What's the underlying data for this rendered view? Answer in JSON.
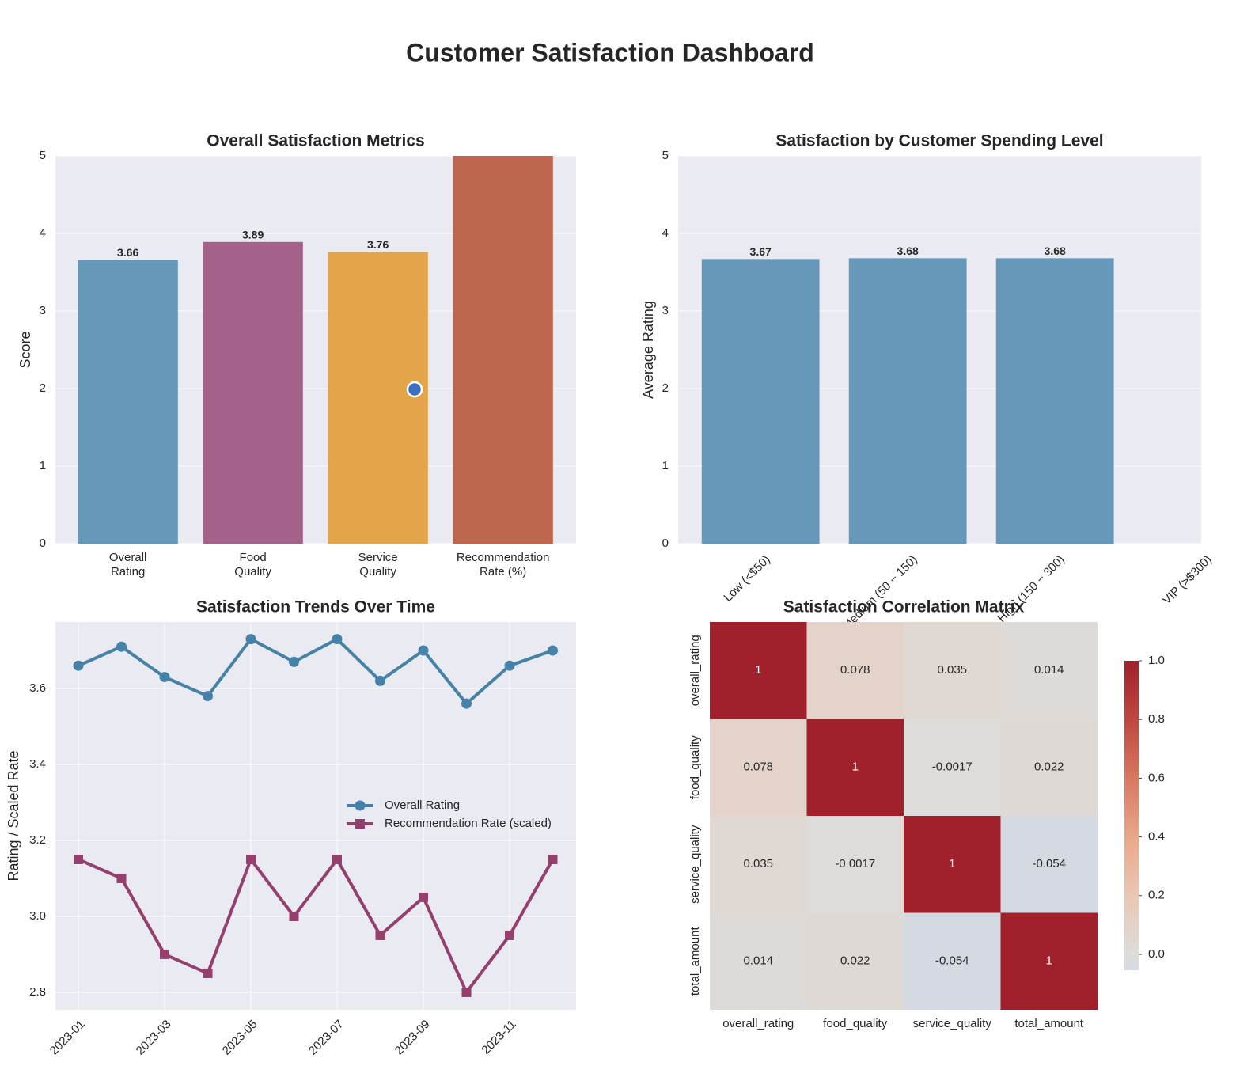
{
  "title": "Customer Satisfaction Dashboard",
  "chart_data": [
    {
      "type": "bar",
      "title": "Overall Satisfaction Metrics",
      "ylabel": "Score",
      "categories": [
        "Overall\nRating",
        "Food\nQuality",
        "Service\nQuality",
        "Recommendation\nRate (%)"
      ],
      "values": [
        3.66,
        3.89,
        3.76,
        5
      ],
      "colors": [
        "#6699b9",
        "#a4628a",
        "#e4a54a",
        "#be654e"
      ],
      "ylim": [
        0,
        5
      ],
      "yticks": [
        0,
        1,
        2,
        3,
        4,
        5
      ],
      "grid": true
    },
    {
      "type": "bar",
      "title": "Satisfaction by Customer Spending Level",
      "ylabel": "Average Rating",
      "categories": [
        "Low (<$50)",
        "Medium (50 − 150)",
        "High (150 − 300)",
        "VIP (>$300)"
      ],
      "values": [
        3.67,
        3.68,
        3.68,
        null
      ],
      "colors": [
        "#6699b9",
        "#6699b9",
        "#6699b9",
        "#6699b9"
      ],
      "ylim": [
        0,
        5
      ],
      "yticks": [
        0,
        1,
        2,
        3,
        4,
        5
      ],
      "grid": true
    },
    {
      "type": "line",
      "title": "Satisfaction Trends Over Time",
      "ylabel": "Rating / Scaled Rate",
      "x": [
        "2023-01",
        "2023-02",
        "2023-03",
        "2023-04",
        "2023-05",
        "2023-06",
        "2023-07",
        "2023-08",
        "2023-09",
        "2023-10",
        "2023-11",
        "2023-12"
      ],
      "series": [
        {
          "name": "Overall Rating",
          "color": "#4682a8",
          "marker": "circle",
          "values": [
            3.66,
            3.71,
            3.63,
            3.58,
            3.73,
            3.67,
            3.73,
            3.62,
            3.7,
            3.56,
            3.66,
            3.7
          ]
        },
        {
          "name": "Recommendation Rate (scaled)",
          "color": "#953f6e",
          "marker": "square",
          "values": [
            3.15,
            3.1,
            2.9,
            2.85,
            3.15,
            3.0,
            3.15,
            2.95,
            3.05,
            2.8,
            2.95,
            3.15
          ]
        }
      ],
      "ylim": [
        2.754,
        3.775
      ],
      "yticks": [
        2.8,
        {
          "value": 3,
          "label": "3.0"
        },
        3.2,
        3.4,
        3.6
      ],
      "xticks": [
        "2023-01",
        "2023-03",
        "2023-05",
        "2023-07",
        "2023-09",
        "2023-11"
      ],
      "legend": "center right",
      "grid": true
    },
    {
      "type": "heatmap",
      "title": "Satisfaction Correlation Matrix",
      "x_labels": [
        "overall_rating",
        "food_quality",
        "service_quality",
        "total_amount"
      ],
      "y_labels": [
        "overall_rating",
        "food_quality",
        "service_quality",
        "total_amount"
      ],
      "matrix": [
        [
          1,
          0.078,
          0.035,
          0.014
        ],
        [
          0.078,
          1,
          -0.0017,
          0.022
        ],
        [
          0.035,
          -0.0017,
          1,
          -0.054
        ],
        [
          0.014,
          0.022,
          -0.054,
          1
        ]
      ],
      "clim": [
        -0.054,
        1
      ],
      "colorbar_ticks": [
        {
          "value": 0,
          "label": "0.0"
        },
        0.2,
        0.4,
        0.6,
        0.8,
        {
          "value": 1,
          "label": "1.0"
        }
      ]
    }
  ]
}
